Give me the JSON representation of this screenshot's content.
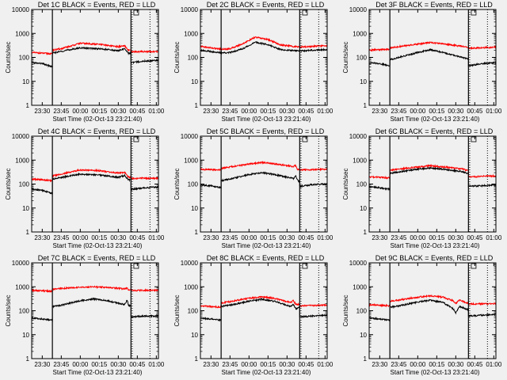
{
  "figure": {
    "background": "#f0f0f0",
    "black_color": "#000000",
    "red_color": "#ff0000"
  },
  "chart_data": [
    {
      "type": "line",
      "title": "Det 1C BLACK = Events, RED = LLD",
      "xlabel": "Start Time (02-Oct-13 23:21:40)",
      "ylabel": "Counts/sec",
      "y_scale": "log",
      "ylim": [
        1,
        10000
      ],
      "y_ticks": [
        "1",
        "10",
        "100",
        "1000",
        "10000"
      ],
      "x_ticks": [
        "23:30",
        "23:45",
        "00:00",
        "00:15",
        "00:30",
        "00:45",
        "01:00"
      ],
      "x_tick_times": [
        "23:30",
        "23:45",
        "00:00",
        "00:15",
        "00:30",
        "00:45",
        "01:00"
      ],
      "x_range": [
        "23:21:40",
        "01:01:40"
      ],
      "solid_marker_times": [
        "23:38",
        "00:40"
      ],
      "dotted_marker_times": [
        "00:41",
        "00:55"
      ],
      "times": [
        "23:21:40",
        "23:30",
        "23:38",
        "23:38",
        "23:45",
        "00:00",
        "00:15",
        "00:30",
        "00:35",
        "00:38",
        "00:40",
        "00:40",
        "00:50",
        "01:01:40"
      ],
      "series": [
        {
          "color": "black",
          "values": [
            60,
            55,
            40,
            150,
            180,
            250,
            230,
            190,
            230,
            150,
            150,
            60,
            70,
            75
          ]
        },
        {
          "color": "red",
          "values": [
            160,
            150,
            140,
            200,
            230,
            390,
            350,
            280,
            300,
            200,
            190,
            170,
            175,
            175
          ]
        }
      ]
    },
    {
      "type": "line",
      "title": "Det 2C BLACK = Events, RED = LLD",
      "xlabel": "Start Time (02-Oct-13 23:21:40)",
      "ylabel": "Counts/sec",
      "y_scale": "log",
      "ylim": [
        1,
        10000
      ],
      "y_ticks": [
        "1",
        "10",
        "100",
        "1000",
        "10000"
      ],
      "x_ticks": [
        "23:30",
        "23:45",
        "00:00",
        "00:15",
        "00:30",
        "00:45",
        "01:00"
      ],
      "x_tick_times": [
        "23:30",
        "23:45",
        "00:00",
        "00:15",
        "00:30",
        "00:45",
        "01:00"
      ],
      "x_range": [
        "23:21:40",
        "01:01:40"
      ],
      "solid_marker_times": [
        "23:38",
        "00:40"
      ],
      "dotted_marker_times": [
        "00:41",
        "00:55"
      ],
      "times": [
        "23:21:40",
        "23:30",
        "23:38",
        "23:45",
        "23:55",
        "00:05",
        "00:15",
        "00:25",
        "00:40",
        "00:50",
        "01:01:40"
      ],
      "series": [
        {
          "color": "black",
          "values": [
            200,
            175,
            155,
            160,
            230,
            430,
            340,
            210,
            185,
            200,
            215
          ]
        },
        {
          "color": "red",
          "values": [
            290,
            250,
            220,
            230,
            370,
            700,
            560,
            330,
            270,
            290,
            310
          ]
        }
      ]
    },
    {
      "type": "line",
      "title": "Det 3F BLACK = Events, RED = LLD",
      "xlabel": "Start Time (02-Oct-13 23:21:40)",
      "ylabel": "Counts/sec",
      "y_scale": "log",
      "ylim": [
        1,
        10000
      ],
      "y_ticks": [
        "1",
        "10",
        "100",
        "1000",
        "10000"
      ],
      "x_ticks": [
        "23:30",
        "23:45",
        "00:00",
        "00:15",
        "00:30",
        "00:45",
        "01:00"
      ],
      "x_tick_times": [
        "23:30",
        "23:45",
        "00:00",
        "00:15",
        "00:30",
        "00:45",
        "01:00"
      ],
      "x_range": [
        "23:21:40",
        "01:01:40"
      ],
      "solid_marker_times": [
        "23:38",
        "00:40"
      ],
      "dotted_marker_times": [
        "00:41",
        "00:55"
      ],
      "times": [
        "23:21:40",
        "23:30",
        "23:38",
        "23:38",
        "23:45",
        "00:00",
        "00:10",
        "00:20",
        "00:35",
        "00:40",
        "00:40",
        "00:50",
        "01:01:40"
      ],
      "series": [
        {
          "color": "black",
          "values": [
            60,
            55,
            45,
            80,
            100,
            160,
            210,
            160,
            100,
            85,
            45,
            55,
            60
          ]
        },
        {
          "color": "red",
          "values": [
            200,
            210,
            220,
            250,
            280,
            360,
            420,
            370,
            290,
            260,
            240,
            250,
            270
          ]
        }
      ]
    },
    {
      "type": "line",
      "title": "Det 4C BLACK = Events, RED = LLD",
      "xlabel": "Start Time (02-Oct-13 23:21:40)",
      "ylabel": "Counts/sec",
      "y_scale": "log",
      "ylim": [
        1,
        10000
      ],
      "y_ticks": [
        "1",
        "10",
        "100",
        "1000",
        "10000"
      ],
      "x_ticks": [
        "23:30",
        "23:45",
        "00:00",
        "00:15",
        "00:30",
        "00:45",
        "01:00"
      ],
      "x_tick_times": [
        "23:30",
        "23:45",
        "00:00",
        "00:15",
        "00:30",
        "00:45",
        "01:00"
      ],
      "x_range": [
        "23:21:40",
        "01:01:40"
      ],
      "solid_marker_times": [
        "23:38",
        "00:40"
      ],
      "dotted_marker_times": [
        "00:41",
        "00:55"
      ],
      "times": [
        "23:21:40",
        "23:30",
        "23:38",
        "23:38",
        "23:45",
        "00:00",
        "00:15",
        "00:30",
        "00:35",
        "00:38",
        "00:40",
        "00:40",
        "00:50",
        "01:01:40"
      ],
      "series": [
        {
          "color": "black",
          "values": [
            60,
            55,
            40,
            160,
            190,
            260,
            240,
            190,
            230,
            150,
            150,
            60,
            70,
            75
          ]
        },
        {
          "color": "red",
          "values": [
            160,
            150,
            140,
            220,
            260,
            390,
            360,
            290,
            310,
            200,
            190,
            170,
            175,
            175
          ]
        }
      ]
    },
    {
      "type": "line",
      "title": "Det 5C BLACK = Events, RED = LLD",
      "xlabel": "Start Time (02-Oct-13 23:21:40)",
      "ylabel": "Counts/sec",
      "y_scale": "log",
      "ylim": [
        1,
        10000
      ],
      "y_ticks": [
        "1",
        "10",
        "100",
        "1000",
        "10000"
      ],
      "x_ticks": [
        "23:30",
        "23:45",
        "00:00",
        "00:15",
        "00:30",
        "00:45",
        "01:00"
      ],
      "x_tick_times": [
        "23:30",
        "23:45",
        "00:00",
        "00:15",
        "00:30",
        "00:45",
        "01:00"
      ],
      "x_range": [
        "23:21:40",
        "01:01:40"
      ],
      "solid_marker_times": [
        "23:38",
        "00:40"
      ],
      "dotted_marker_times": [
        "00:41",
        "00:55"
      ],
      "times": [
        "23:21:40",
        "23:30",
        "23:38",
        "23:38",
        "23:45",
        "00:00",
        "00:10",
        "00:20",
        "00:35",
        "00:37",
        "00:38",
        "00:40",
        "00:40",
        "00:50",
        "01:01:40"
      ],
      "series": [
        {
          "color": "black",
          "values": [
            90,
            85,
            70,
            140,
            160,
            250,
            300,
            250,
            170,
            230,
            150,
            120,
            80,
            95,
            100
          ]
        },
        {
          "color": "red",
          "values": [
            410,
            400,
            390,
            450,
            520,
            680,
            800,
            700,
            540,
            600,
            420,
            380,
            390,
            400,
            420
          ]
        }
      ]
    },
    {
      "type": "line",
      "title": "Det 6C BLACK = Events, RED = LLD",
      "xlabel": "Start Time (02-Oct-13 23:21:40)",
      "ylabel": "Counts/sec",
      "y_scale": "log",
      "ylim": [
        1,
        10000
      ],
      "y_ticks": [
        "1",
        "10",
        "100",
        "1000",
        "10000"
      ],
      "x_ticks": [
        "23:30",
        "23:45",
        "00:00",
        "00:15",
        "00:30",
        "00:45",
        "01:00"
      ],
      "x_tick_times": [
        "23:30",
        "23:45",
        "00:00",
        "00:15",
        "00:30",
        "00:45",
        "01:00"
      ],
      "x_range": [
        "23:21:40",
        "01:01:40"
      ],
      "solid_marker_times": [
        "23:38",
        "00:40"
      ],
      "dotted_marker_times": [
        "00:41",
        "00:55"
      ],
      "times": [
        "23:21:40",
        "23:30",
        "23:38",
        "23:38",
        "23:45",
        "00:00",
        "00:10",
        "00:20",
        "00:35",
        "00:38",
        "00:40",
        "00:40",
        "00:50",
        "01:01:40"
      ],
      "series": [
        {
          "color": "black",
          "values": [
            80,
            70,
            60,
            280,
            320,
            420,
            470,
            420,
            330,
            290,
            280,
            80,
            85,
            90
          ]
        },
        {
          "color": "red",
          "values": [
            200,
            190,
            180,
            380,
            420,
            520,
            580,
            520,
            430,
            380,
            360,
            200,
            210,
            220
          ]
        }
      ]
    },
    {
      "type": "line",
      "title": "Det 7C BLACK = Events, RED = LLD",
      "xlabel": "Start Time (02-Oct-13 23:21:40)",
      "ylabel": "Counts/sec",
      "y_scale": "log",
      "ylim": [
        1,
        10000
      ],
      "y_ticks": [
        "1",
        "10",
        "100",
        "1000",
        "10000"
      ],
      "x_ticks": [
        "23:30",
        "23:45",
        "00:00",
        "00:15",
        "00:30",
        "00:45",
        "01:00"
      ],
      "x_tick_times": [
        "23:30",
        "23:45",
        "00:00",
        "00:15",
        "00:30",
        "00:45",
        "01:00"
      ],
      "x_range": [
        "23:21:40",
        "01:01:40"
      ],
      "solid_marker_times": [
        "23:38",
        "00:40"
      ],
      "dotted_marker_times": [
        "00:41",
        "00:55"
      ],
      "times": [
        "23:21:40",
        "23:30",
        "23:38",
        "23:38",
        "23:45",
        "00:00",
        "00:10",
        "00:20",
        "00:35",
        "00:37",
        "00:38",
        "00:40",
        "00:40",
        "00:50",
        "01:01:40"
      ],
      "series": [
        {
          "color": "black",
          "values": [
            50,
            45,
            40,
            150,
            170,
            260,
            310,
            270,
            180,
            280,
            170,
            160,
            55,
            60,
            60
          ]
        },
        {
          "color": "red",
          "values": [
            700,
            680,
            650,
            800,
            850,
            950,
            1000,
            950,
            820,
            850,
            760,
            740,
            700,
            710,
            720
          ]
        }
      ]
    },
    {
      "type": "line",
      "title": "Det 8C BLACK = Events, RED = LLD",
      "xlabel": "Start Time (02-Oct-13 23:21:40)",
      "ylabel": "Counts/sec",
      "y_scale": "log",
      "ylim": [
        1,
        10000
      ],
      "y_ticks": [
        "1",
        "10",
        "100",
        "1000",
        "10000"
      ],
      "x_ticks": [
        "23:30",
        "23:45",
        "00:00",
        "00:15",
        "00:30",
        "00:45",
        "01:00"
      ],
      "x_tick_times": [
        "23:30",
        "23:45",
        "00:00",
        "00:15",
        "00:30",
        "00:45",
        "01:00"
      ],
      "x_range": [
        "23:21:40",
        "01:01:40"
      ],
      "solid_marker_times": [
        "23:38",
        "00:40"
      ],
      "dotted_marker_times": [
        "00:41",
        "00:55"
      ],
      "times": [
        "23:21:40",
        "23:30",
        "23:38",
        "23:38",
        "23:45",
        "00:00",
        "00:10",
        "00:20",
        "00:33",
        "00:35",
        "00:37",
        "00:40",
        "00:40",
        "00:50",
        "01:01:40"
      ],
      "series": [
        {
          "color": "black",
          "values": [
            50,
            45,
            40,
            150,
            170,
            250,
            300,
            250,
            150,
            180,
            120,
            140,
            55,
            60,
            65
          ]
        },
        {
          "color": "red",
          "values": [
            160,
            150,
            140,
            210,
            240,
            330,
            380,
            330,
            220,
            270,
            180,
            190,
            160,
            165,
            170
          ]
        }
      ]
    },
    {
      "type": "line",
      "title": "Det 9C BLACK = Events, RED = LLD",
      "xlabel": "Start Time (02-Oct-13 23:21:40)",
      "ylabel": "Counts/sec",
      "y_scale": "log",
      "ylim": [
        1,
        10000
      ],
      "y_ticks": [
        "1",
        "10",
        "100",
        "1000",
        "10000"
      ],
      "x_ticks": [
        "23:30",
        "23:45",
        "00:00",
        "00:15",
        "00:30",
        "00:45",
        "01:00"
      ],
      "x_tick_times": [
        "23:30",
        "23:45",
        "00:00",
        "00:15",
        "00:30",
        "00:45",
        "01:00"
      ],
      "x_range": [
        "23:21:40",
        "01:01:40"
      ],
      "solid_marker_times": [
        "23:38",
        "00:40"
      ],
      "dotted_marker_times": [
        "00:41",
        "00:55"
      ],
      "times": [
        "23:21:40",
        "23:30",
        "23:38",
        "23:38",
        "23:45",
        "00:00",
        "00:10",
        "00:20",
        "00:28",
        "00:30",
        "00:33",
        "00:40",
        "00:40",
        "00:50",
        "01:01:40"
      ],
      "series": [
        {
          "color": "black",
          "values": [
            50,
            45,
            40,
            140,
            160,
            230,
            280,
            220,
            120,
            80,
            150,
            110,
            60,
            65,
            70
          ]
        },
        {
          "color": "red",
          "values": [
            180,
            170,
            160,
            250,
            280,
            370,
            420,
            370,
            260,
            200,
            280,
            200,
            190,
            195,
            200
          ]
        }
      ]
    }
  ]
}
